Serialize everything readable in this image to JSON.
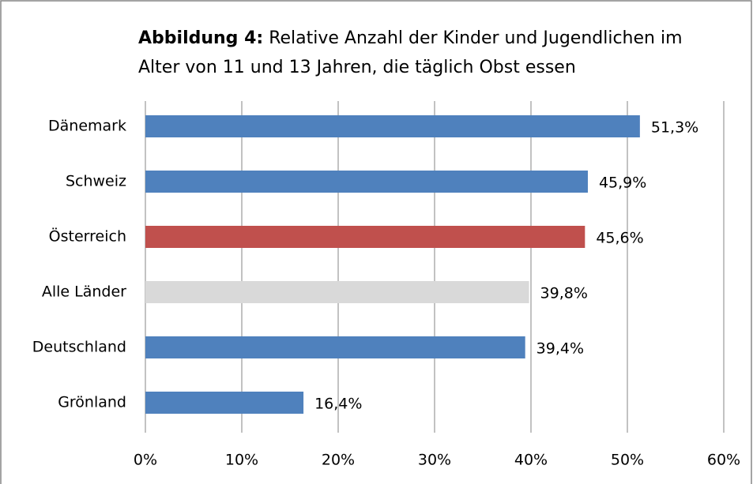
{
  "chart_data": {
    "type": "barh",
    "title": {
      "label": "Abbildung 4:",
      "text": "Relative Anzahl der Kinder und Jugendlichen im Alter von 11 und 13 Jahren, die täglich Obst essen"
    },
    "categories": [
      "Dänemark",
      "Schweiz",
      "Österreich",
      "Alle Länder",
      "Deutschland",
      "Grönland"
    ],
    "values": [
      51.3,
      45.9,
      45.6,
      39.8,
      39.4,
      16.4
    ],
    "value_labels": [
      "51,3%",
      "45,9%",
      "45,6%",
      "39,8%",
      "39,4%",
      "16,4%"
    ],
    "colors": [
      "#4f81bd",
      "#4f81bd",
      "#c0504d",
      "#d9d9d9",
      "#4f81bd",
      "#4f81bd"
    ],
    "xlim": [
      0,
      60
    ],
    "xticks": [
      {
        "value": 0,
        "label": "0%"
      },
      {
        "value": 10,
        "label": "10%"
      },
      {
        "value": 20,
        "label": "20%"
      },
      {
        "value": 30,
        "label": "30%"
      },
      {
        "value": 40,
        "label": "40%"
      },
      {
        "value": 50,
        "label": "50%"
      },
      {
        "value": 60,
        "label": "60%"
      }
    ],
    "grid": true
  }
}
